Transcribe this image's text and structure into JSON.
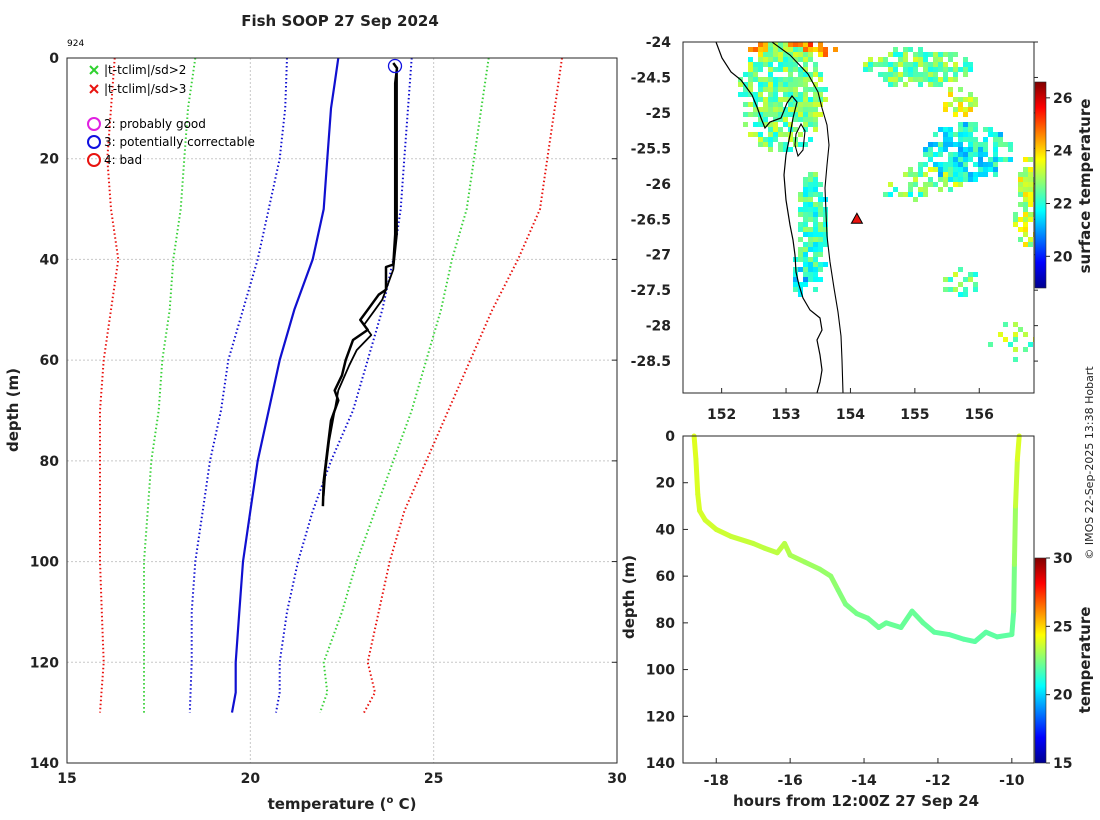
{
  "figure": {
    "title": "Fish SOOP 27 Sep 2024",
    "probe_id": "924",
    "credit": "© IMOS 22-Sep-2025 13:38 Hobart"
  },
  "chart_data": [
    {
      "id": "profile",
      "type": "line",
      "title": "Fish SOOP 27 Sep 2024",
      "xlabel": "temperature (",
      "xlabel_unit": "o",
      "xlabel_tail": " C)",
      "ylabel": "depth (m)",
      "xlim": [
        15,
        30
      ],
      "ylim": [
        0,
        140
      ],
      "y_inverted": true,
      "xticks": [
        15,
        20,
        25,
        30
      ],
      "yticks": [
        0,
        20,
        40,
        60,
        80,
        100,
        120,
        140
      ],
      "grid": true,
      "legend": [
        {
          "marker": "x",
          "color": "#2fd12f",
          "label": "|t-tclim|/sd>2"
        },
        {
          "marker": "x",
          "color": "#e8130f",
          "label": "|t-tclim|/sd>3"
        },
        {
          "marker": "o",
          "color": "#e020e0",
          "label": "2: probably good"
        },
        {
          "marker": "o",
          "color": "#1010e0",
          "label": "3: potentially correctable"
        },
        {
          "marker": "o",
          "color": "#e8130f",
          "label": "4: bad"
        }
      ],
      "series": [
        {
          "name": "climatology mean",
          "color": "#1010d0",
          "style": "solid",
          "width": 2.2,
          "points": [
            [
              22.4,
              0
            ],
            [
              22.3,
              5
            ],
            [
              22.2,
              10
            ],
            [
              22.1,
              20
            ],
            [
              22.0,
              30
            ],
            [
              21.7,
              40
            ],
            [
              21.2,
              50
            ],
            [
              20.8,
              60
            ],
            [
              20.5,
              70
            ],
            [
              20.2,
              80
            ],
            [
              20.0,
              90
            ],
            [
              19.8,
              100
            ],
            [
              19.7,
              110
            ],
            [
              19.6,
              120
            ],
            [
              19.6,
              126
            ],
            [
              19.5,
              130
            ]
          ]
        },
        {
          "name": "mean - 1 sd",
          "color": "#1010d0",
          "style": "dotted",
          "width": 2,
          "points": [
            [
              21.0,
              0
            ],
            [
              20.95,
              10
            ],
            [
              20.8,
              20
            ],
            [
              20.5,
              30
            ],
            [
              20.2,
              40
            ],
            [
              19.8,
              50
            ],
            [
              19.4,
              60
            ],
            [
              19.2,
              70
            ],
            [
              18.9,
              80
            ],
            [
              18.7,
              90
            ],
            [
              18.5,
              100
            ],
            [
              18.4,
              110
            ],
            [
              18.4,
              120
            ],
            [
              18.35,
              130
            ]
          ]
        },
        {
          "name": "mean + 1 sd",
          "color": "#1010d0",
          "style": "dotted",
          "width": 2,
          "points": [
            [
              24.4,
              0
            ],
            [
              24.3,
              10
            ],
            [
              24.2,
              20
            ],
            [
              24.1,
              30
            ],
            [
              23.9,
              40
            ],
            [
              23.6,
              50
            ],
            [
              23.2,
              60
            ],
            [
              22.8,
              70
            ],
            [
              22.2,
              80
            ],
            [
              21.7,
              90
            ],
            [
              21.3,
              100
            ],
            [
              21.0,
              110
            ],
            [
              20.8,
              120
            ],
            [
              20.8,
              126
            ],
            [
              20.7,
              130
            ]
          ]
        },
        {
          "name": "mean - 2 sd",
          "color": "#3ad13a",
          "style": "dotted",
          "width": 2,
          "points": [
            [
              18.5,
              0
            ],
            [
              18.3,
              10
            ],
            [
              18.2,
              20
            ],
            [
              18.1,
              30
            ],
            [
              17.9,
              40
            ],
            [
              17.8,
              50
            ],
            [
              17.6,
              60
            ],
            [
              17.5,
              70
            ],
            [
              17.3,
              80
            ],
            [
              17.2,
              90
            ],
            [
              17.1,
              100
            ],
            [
              17.1,
              110
            ],
            [
              17.1,
              120
            ],
            [
              17.1,
              130
            ]
          ]
        },
        {
          "name": "mean + 2 sd",
          "color": "#3ad13a",
          "style": "dotted",
          "width": 2,
          "points": [
            [
              26.5,
              0
            ],
            [
              26.3,
              10
            ],
            [
              26.1,
              20
            ],
            [
              25.9,
              30
            ],
            [
              25.5,
              40
            ],
            [
              25.2,
              50
            ],
            [
              24.8,
              60
            ],
            [
              24.4,
              70
            ],
            [
              23.9,
              80
            ],
            [
              23.4,
              90
            ],
            [
              22.9,
              100
            ],
            [
              22.5,
              110
            ],
            [
              22.0,
              120
            ],
            [
              22.1,
              126
            ],
            [
              21.9,
              130
            ]
          ]
        },
        {
          "name": "mean - 3 sd",
          "color": "#e8130f",
          "style": "dotted",
          "width": 2,
          "points": [
            [
              16.3,
              0
            ],
            [
              16.2,
              10
            ],
            [
              16.1,
              20
            ],
            [
              16.2,
              30
            ],
            [
              16.4,
              40
            ],
            [
              16.2,
              50
            ],
            [
              16.0,
              60
            ],
            [
              15.9,
              70
            ],
            [
              15.9,
              80
            ],
            [
              15.9,
              90
            ],
            [
              15.9,
              100
            ],
            [
              15.95,
              110
            ],
            [
              16.0,
              120
            ],
            [
              15.9,
              130
            ]
          ]
        },
        {
          "name": "mean + 3 sd",
          "color": "#e8130f",
          "style": "dotted",
          "width": 2,
          "points": [
            [
              28.5,
              0
            ],
            [
              28.3,
              10
            ],
            [
              28.1,
              20
            ],
            [
              27.9,
              30
            ],
            [
              27.3,
              40
            ],
            [
              26.6,
              50
            ],
            [
              26.0,
              60
            ],
            [
              25.4,
              70
            ],
            [
              24.8,
              80
            ],
            [
              24.2,
              90
            ],
            [
              23.8,
              100
            ],
            [
              23.5,
              110
            ],
            [
              23.2,
              120
            ],
            [
              23.4,
              126
            ],
            [
              23.1,
              130
            ]
          ]
        },
        {
          "name": "observed profile",
          "color": "#000000",
          "style": "solid",
          "width": 2.5,
          "points": [
            [
              23.9,
              1
            ],
            [
              24.0,
              2
            ],
            [
              23.95,
              5
            ],
            [
              23.95,
              10
            ],
            [
              23.95,
              20
            ],
            [
              23.95,
              30
            ],
            [
              23.95,
              35
            ],
            [
              23.9,
              41
            ],
            [
              23.7,
              41.5
            ],
            [
              23.7,
              46
            ],
            [
              23.5,
              47
            ],
            [
              23.2,
              50
            ],
            [
              23.0,
              52
            ],
            [
              23.2,
              54
            ],
            [
              22.8,
              56
            ],
            [
              22.6,
              60
            ],
            [
              22.5,
              63
            ],
            [
              22.3,
              66
            ],
            [
              22.4,
              68
            ],
            [
              22.2,
              72
            ],
            [
              22.1,
              78
            ],
            [
              22.0,
              84
            ],
            [
              21.98,
              89
            ]
          ]
        },
        {
          "name": "observed cast 2",
          "color": "#000000",
          "style": "solid",
          "width": 1.8,
          "points": [
            [
              24.0,
              3
            ],
            [
              24.0,
              20
            ],
            [
              24.0,
              35
            ],
            [
              23.9,
              42
            ],
            [
              23.6,
              48
            ],
            [
              23.4,
              50
            ],
            [
              23.1,
              53
            ],
            [
              23.3,
              55
            ],
            [
              22.9,
              58
            ],
            [
              22.7,
              61
            ],
            [
              22.4,
              66
            ],
            [
              22.3,
              70
            ],
            [
              22.15,
              76
            ],
            [
              22.05,
              82
            ],
            [
              22.0,
              87
            ]
          ]
        }
      ],
      "flag_markers": [
        {
          "x": 24.0,
          "y": 1,
          "type": "circle",
          "color": "#1010e0",
          "label": "3"
        }
      ]
    },
    {
      "id": "map",
      "type": "heatmap",
      "colorbar_label": "surface temperature",
      "xticks": [
        152,
        153,
        154,
        155,
        156
      ],
      "yticks": [
        -24,
        -24.5,
        -25,
        -25.5,
        -26,
        -26.5,
        -27,
        -27.5,
        -28,
        -28.5
      ],
      "xlim": [
        151.4,
        156.85
      ],
      "ylim": [
        -28.95,
        -24
      ],
      "color_range": [
        18.8,
        26.6
      ],
      "colorbar_ticks": [
        20,
        22,
        24,
        26
      ],
      "station": {
        "lon": 154.1,
        "lat": -26.5,
        "marker": "triangle",
        "color": "#e8130f"
      }
    },
    {
      "id": "depth_time",
      "type": "line",
      "xlabel": "hours from 12:00Z 27 Sep 24",
      "ylabel": "depth (m)",
      "colorbar_label": "temperature",
      "xlim": [
        -18.9,
        -9.4
      ],
      "ylim": [
        0,
        140
      ],
      "y_inverted": true,
      "xticks": [
        -18,
        -16,
        -14,
        -12,
        -10
      ],
      "yticks": [
        0,
        20,
        40,
        60,
        80,
        100,
        120,
        140
      ],
      "color_range": [
        15,
        30
      ],
      "colorbar_ticks": [
        15,
        20,
        25,
        30
      ],
      "points": [
        [
          -18.6,
          0,
          23.9
        ],
        [
          -18.55,
          10,
          23.9
        ],
        [
          -18.5,
          25,
          23.8
        ],
        [
          -18.45,
          32,
          23.8
        ],
        [
          -18.3,
          36,
          23.7
        ],
        [
          -18.0,
          40,
          23.7
        ],
        [
          -17.6,
          43,
          23.6
        ],
        [
          -17.0,
          46,
          23.5
        ],
        [
          -16.7,
          48,
          23.4
        ],
        [
          -16.35,
          50,
          23.4
        ],
        [
          -16.15,
          46,
          23.4
        ],
        [
          -16.0,
          51,
          23.2
        ],
        [
          -15.6,
          54,
          23.0
        ],
        [
          -15.2,
          57,
          22.9
        ],
        [
          -14.9,
          60,
          22.8
        ],
        [
          -14.7,
          66,
          22.7
        ],
        [
          -14.5,
          72,
          22.5
        ],
        [
          -14.2,
          76,
          22.4
        ],
        [
          -13.9,
          78,
          22.3
        ],
        [
          -13.6,
          82,
          22.2
        ],
        [
          -13.4,
          80,
          22.2
        ],
        [
          -13.0,
          82,
          22.1
        ],
        [
          -12.7,
          75,
          22.2
        ],
        [
          -12.4,
          80,
          22.1
        ],
        [
          -12.1,
          84,
          22.1
        ],
        [
          -11.7,
          85,
          22.0
        ],
        [
          -11.3,
          87,
          22.0
        ],
        [
          -11.0,
          88,
          22.0
        ],
        [
          -10.7,
          84,
          22.0
        ],
        [
          -10.4,
          86,
          22.0
        ],
        [
          -10.0,
          85,
          22.0
        ],
        [
          -9.95,
          75,
          22.2
        ],
        [
          -9.93,
          55,
          22.6
        ],
        [
          -9.9,
          30,
          23.3
        ],
        [
          -9.85,
          10,
          23.8
        ],
        [
          -9.8,
          0,
          23.9
        ]
      ]
    }
  ]
}
